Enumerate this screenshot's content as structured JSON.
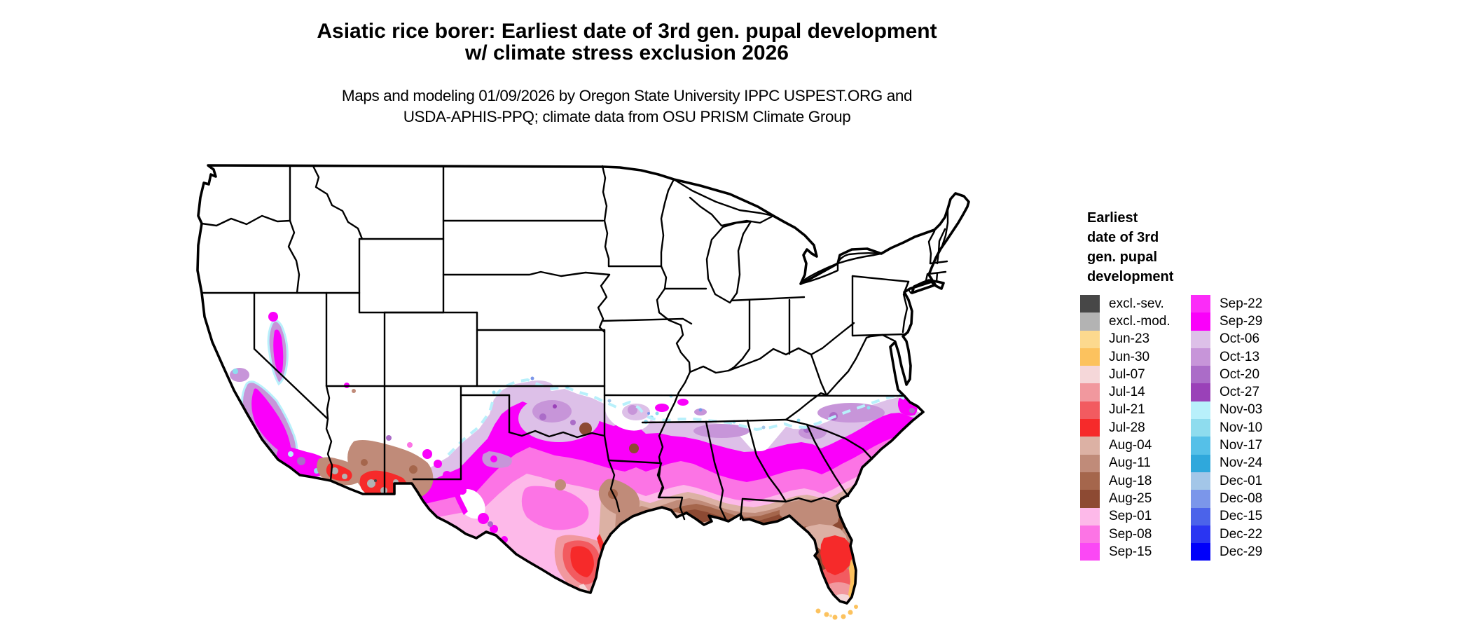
{
  "title": {
    "line1": "Asiatic rice borer: Earliest date of 3rd gen. pupal development",
    "line2": "w/ climate stress exclusion 2026"
  },
  "subtitle": {
    "line1": "Maps and modeling 01/09/2026 by Oregon State University IPPC USPEST.ORG and",
    "line2": "USDA-APHIS-PPQ; climate data from OSU PRISM Climate Group"
  },
  "legend": {
    "title_lines": [
      "Earliest",
      "date of 3rd",
      "gen. pupal",
      "development"
    ],
    "columns": [
      [
        {
          "label": "excl.-sev.",
          "color": "#474747"
        },
        {
          "label": "excl.-mod.",
          "color": "#b3b3b3"
        },
        {
          "label": "Jun-23",
          "color": "#fcd98e"
        },
        {
          "label": "Jun-30",
          "color": "#fcc25e"
        },
        {
          "label": "Jul-07",
          "color": "#f5d7d9"
        },
        {
          "label": "Jul-14",
          "color": "#f1989e"
        },
        {
          "label": "Jul-21",
          "color": "#f25b60"
        },
        {
          "label": "Jul-28",
          "color": "#f62a2a"
        },
        {
          "label": "Aug-04",
          "color": "#dcb1a4"
        },
        {
          "label": "Aug-11",
          "color": "#c08b79"
        },
        {
          "label": "Aug-18",
          "color": "#a5664c"
        },
        {
          "label": "Aug-25",
          "color": "#8d4a33"
        },
        {
          "label": "Sep-01",
          "color": "#fdb9e9"
        },
        {
          "label": "Sep-08",
          "color": "#fc74e5"
        },
        {
          "label": "Sep-15",
          "color": "#fb48f5"
        }
      ],
      [
        {
          "label": "Sep-22",
          "color": "#fb2cf8"
        },
        {
          "label": "Sep-29",
          "color": "#fa00fa"
        },
        {
          "label": "Oct-06",
          "color": "#ddc0e8"
        },
        {
          "label": "Oct-13",
          "color": "#c795d9"
        },
        {
          "label": "Oct-20",
          "color": "#ab6cc8"
        },
        {
          "label": "Oct-27",
          "color": "#9a41b8"
        },
        {
          "label": "Nov-03",
          "color": "#b8f0fb"
        },
        {
          "label": "Nov-10",
          "color": "#8edcee"
        },
        {
          "label": "Nov-17",
          "color": "#55c0e8"
        },
        {
          "label": "Nov-24",
          "color": "#2fa8dc"
        },
        {
          "label": "Dec-01",
          "color": "#a3c6e8"
        },
        {
          "label": "Dec-08",
          "color": "#7b96ea"
        },
        {
          "label": "Dec-15",
          "color": "#4b63ea"
        },
        {
          "label": "Dec-22",
          "color": "#2a35f2"
        },
        {
          "label": "Dec-29",
          "color": "#0000fa"
        }
      ]
    ]
  }
}
